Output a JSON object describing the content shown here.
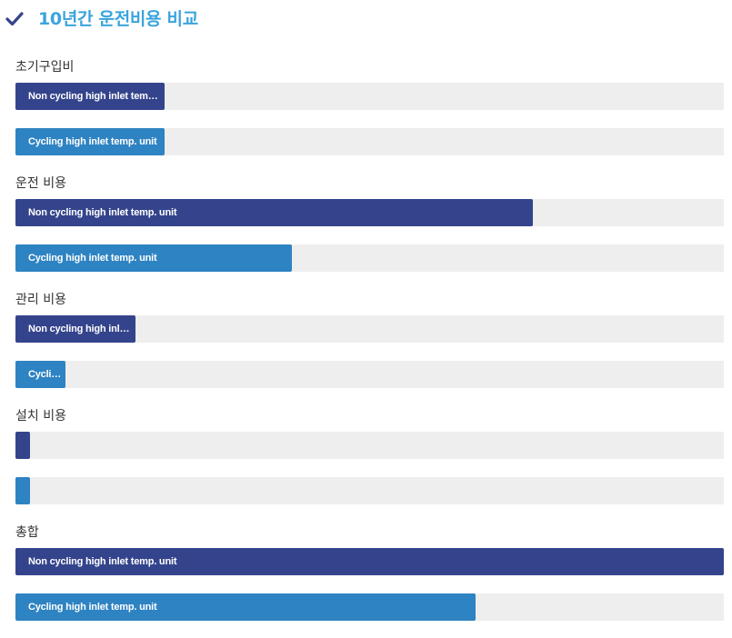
{
  "title": "10년간 운전비용 비교",
  "icons": {
    "header": "checkmark-icon"
  },
  "colors": {
    "title": "#3aa4dd",
    "non_cycling": "#34448c",
    "cycling": "#2e83c2",
    "track": "#eeeeee"
  },
  "chart_data": {
    "type": "bar",
    "orientation": "horizontal",
    "title": "10년간 운전비용 비교",
    "categories": [
      "초기구입비",
      "운전 비용",
      "관리 비용",
      "설치 비용",
      "총합"
    ],
    "series": [
      {
        "name": "Non cycling high inlet temp. unit",
        "values": [
          21,
          73,
          17,
          2,
          100
        ]
      },
      {
        "name": "Cycling high inlet temp. unit",
        "values": [
          21,
          39,
          7,
          2,
          65
        ]
      }
    ],
    "xlim": [
      0,
      100
    ],
    "unit": "percent of bar track",
    "legend": "none",
    "grid": false
  }
}
